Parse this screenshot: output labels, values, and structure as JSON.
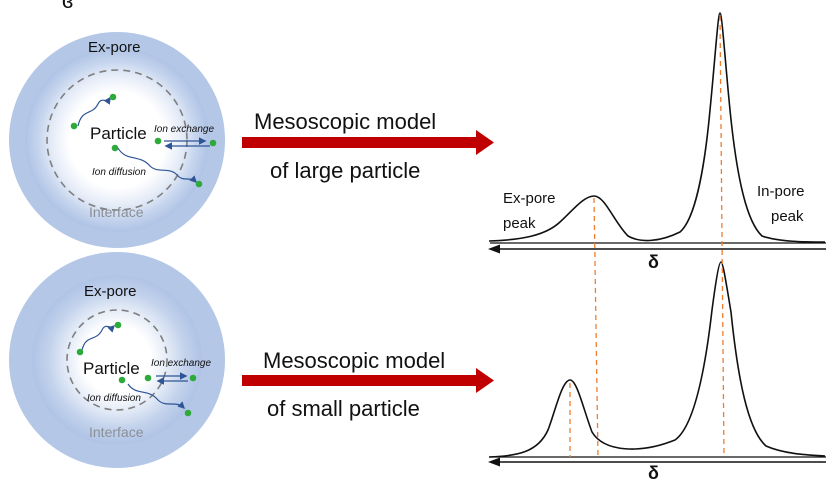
{
  "top_diagram": {
    "ex_pore_label": "Ex-pore",
    "particle_label": "Particle",
    "ion_exchange_label": "Ion exchange",
    "ion_diffusion_label": "Ion diffusion",
    "interface_label": "Interface"
  },
  "bottom_diagram": {
    "ex_pore_label": "Ex-pore",
    "particle_label": "Particle",
    "ion_exchange_label": "Ion exchange",
    "ion_diffusion_label": "Ion diffusion",
    "interface_label": "Interface"
  },
  "top_arrow": {
    "line1": "Mesoscopic model",
    "line2": "of large particle"
  },
  "bottom_arrow": {
    "line1": "Mesoscopic model",
    "line2": "of  small particle"
  },
  "top_spectrum": {
    "ex_pore_peak_line1": "Ex-pore",
    "ex_pore_peak_line2": "peak",
    "in_pore_peak_line1": "In-pore",
    "in_pore_peak_line2": "peak",
    "axis_symbol": "δ"
  },
  "bottom_spectrum": {
    "axis_symbol": "δ"
  },
  "colors": {
    "ring_blue": "#b4c7e7",
    "ion_green": "#2eaa3a",
    "arrow_red": "#c00000",
    "dash_orange": "#ed7d31",
    "trajectory_blue": "#2f5597"
  }
}
